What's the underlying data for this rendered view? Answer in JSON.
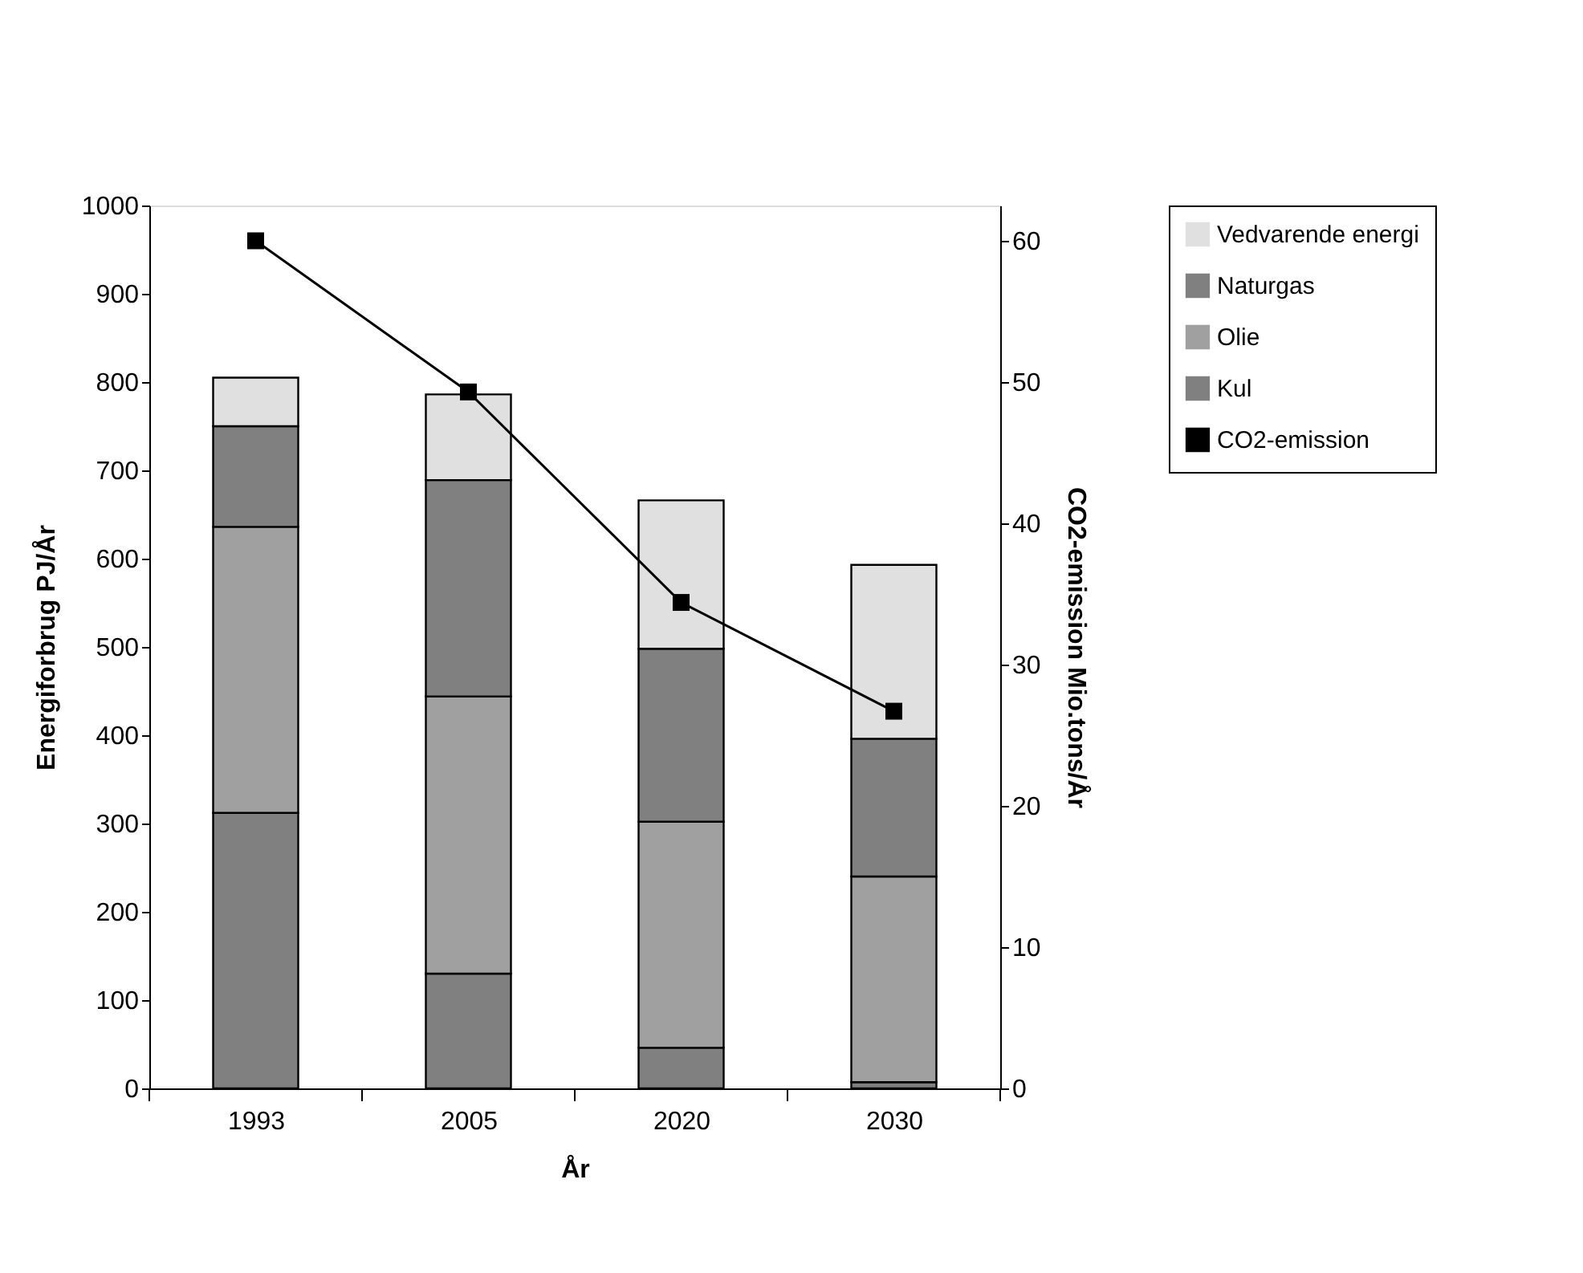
{
  "chart_data": {
    "type": "bar",
    "stacked": true,
    "xlabel": "År",
    "ylabel": "Energiforbrug PJ/År",
    "y2label": "CO2-emission Mio.tons/År",
    "categories": [
      "1993",
      "2005",
      "2020",
      "2030"
    ],
    "series": [
      {
        "name": "Kul",
        "color": "#808080",
        "values": [
          312,
          130,
          46,
          7
        ]
      },
      {
        "name": "Olie",
        "color": "#a0a0a0",
        "values": [
          324,
          314,
          256,
          233
        ]
      },
      {
        "name": "Naturgas",
        "color": "#808080",
        "values": [
          114,
          245,
          196,
          156
        ]
      },
      {
        "name": "Vedvarende energi",
        "color": "#e0e0e0",
        "values": [
          55,
          97,
          168,
          197
        ]
      },
      {
        "name": "CO2-emission",
        "type": "line",
        "axis": "y2",
        "color": "#000000",
        "marker": "square",
        "values": [
          60,
          49.3,
          34.4,
          26.7
        ]
      }
    ],
    "ylim": [
      0,
      1000
    ],
    "yticks": [
      0,
      100,
      200,
      300,
      400,
      500,
      600,
      700,
      800,
      900,
      1000
    ],
    "y2lim": [
      0,
      62.5
    ],
    "y2ticks": [
      0,
      10,
      20,
      30,
      40,
      50,
      60
    ],
    "grid": false,
    "legend": "right"
  }
}
